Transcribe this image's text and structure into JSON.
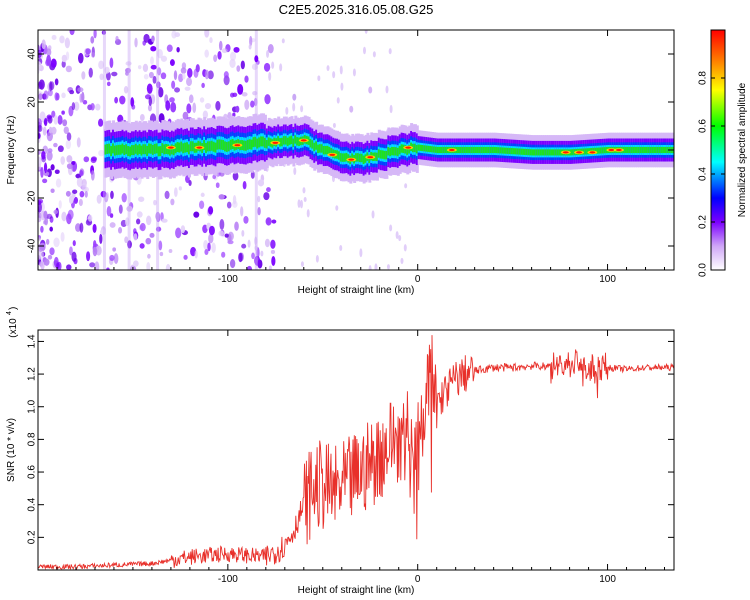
{
  "title": "C2E5.2025.316.05.08.G25",
  "chart_data": [
    {
      "type": "heatmap",
      "title": "C2E5.2025.316.05.08.G25",
      "xlabel": "Height of straight line (km)",
      "ylabel": "Frequency (Hz)",
      "xlim": [
        -200,
        135
      ],
      "ylim": [
        -50,
        50
      ],
      "xticks": [
        -100,
        0,
        100
      ],
      "xtick_labels": [
        "-100",
        "0",
        "100"
      ],
      "yticks": [
        40,
        20,
        0,
        -20,
        -40
      ],
      "ytick_labels": [
        "40",
        "20",
        "0",
        "-20",
        "-40"
      ],
      "colorbar": {
        "label": "Normalized spectral amplitude",
        "range": [
          0,
          1
        ],
        "ticks": [
          0,
          0.2,
          0.4,
          0.6,
          0.8
        ],
        "tick_labels": [
          "0.0",
          "0.2",
          "0.4",
          "0.6",
          "0.8"
        ]
      },
      "ridge": {
        "x": [
          -160,
          -140,
          -120,
          -100,
          -80,
          -60,
          -50,
          -40,
          -30,
          -20,
          -10,
          0,
          10,
          20,
          40,
          60,
          80,
          100,
          135
        ],
        "y": [
          0,
          0,
          1,
          2,
          3,
          4,
          0,
          -3,
          -4,
          -2,
          0,
          1,
          0,
          0,
          0,
          -1,
          -1,
          0,
          0
        ]
      }
    },
    {
      "type": "line",
      "xlabel": "Height of straight line (km)",
      "ylabel": "SNR (10 * v/v)",
      "yscale_label": "(x10",
      "yscale_exp": "4",
      "xlim": [
        -200,
        135
      ],
      "ylim": [
        0,
        1.47
      ],
      "xticks": [
        -100,
        0,
        100
      ],
      "xtick_labels": [
        "-100",
        "0",
        "100"
      ],
      "yticks": [
        0.2,
        0.4,
        0.6,
        0.8,
        1.0,
        1.2,
        1.4
      ],
      "ytick_labels": [
        "0.2",
        "0.4",
        "0.6",
        "0.8",
        "1.0",
        "1.2",
        "1.4"
      ],
      "color": "#e8302a",
      "series": [
        {
          "name": "SNR",
          "x": [
            -200,
            -180,
            -160,
            -140,
            -130,
            -120,
            -110,
            -100,
            -90,
            -80,
            -70,
            -65,
            -60,
            -55,
            -50,
            -45,
            -40,
            -35,
            -30,
            -25,
            -20,
            -15,
            -10,
            -5,
            0,
            5,
            8,
            10,
            15,
            20,
            25,
            30,
            35,
            40,
            50,
            60,
            70,
            80,
            85,
            90,
            95,
            100,
            110,
            120,
            135
          ],
          "y": [
            0.02,
            0.02,
            0.03,
            0.04,
            0.06,
            0.08,
            0.09,
            0.1,
            0.09,
            0.08,
            0.15,
            0.25,
            0.4,
            0.5,
            0.52,
            0.48,
            0.5,
            0.55,
            0.6,
            0.65,
            0.7,
            0.78,
            0.82,
            0.85,
            0.9,
            0.95,
            1.0,
            1.02,
            1.1,
            1.17,
            1.2,
            1.22,
            1.23,
            1.24,
            1.24,
            1.25,
            1.25,
            1.26,
            1.28,
            1.22,
            1.25,
            1.24,
            1.23,
            1.24,
            1.24
          ]
        }
      ]
    }
  ]
}
